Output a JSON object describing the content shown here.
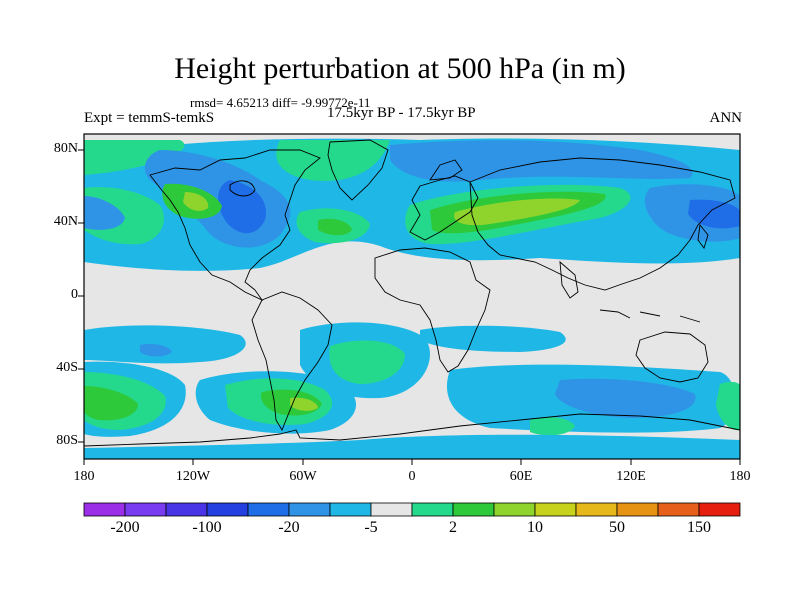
{
  "title": "Height perturbation at 500 hPa (in m)",
  "stats_line": "rmsd= 4.65213 diff= -9.99772e-11",
  "left_label": "Expt = temmS-temkS",
  "center_label": "17.5kyr BP - 17.5kyr BP",
  "right_label": "ANN",
  "lat_ticks": [
    "80N",
    "40N",
    "0",
    "40S",
    "80S"
  ],
  "lon_ticks": [
    "180",
    "120W",
    "60W",
    "0",
    "60E",
    "120E",
    "180"
  ],
  "colorbar": {
    "labels": [
      "-200",
      "-100",
      "-20",
      "-5",
      "2",
      "10",
      "50",
      "150"
    ],
    "colors": [
      "#9b2fe8",
      "#7a3cf0",
      "#4a35e6",
      "#2440e0",
      "#1f6ee8",
      "#2f94e6",
      "#1fb8e6",
      "#e6e6e6",
      "#24d98c",
      "#2ec93a",
      "#8fd42c",
      "#c6d21c",
      "#e6b81a",
      "#e69212",
      "#e6601c",
      "#e61e0e"
    ]
  },
  "map": {
    "colors": {
      "neutral": "#e6e6e6",
      "light_blue": "#1fb8e6",
      "mid_blue": "#2f94e6",
      "dark_blue": "#1f6ee8",
      "teal_green": "#24d98c",
      "green": "#2ec93a",
      "yellow_green": "#8fd42c",
      "yellow": "#c6d21c",
      "coast": "#000000"
    }
  }
}
